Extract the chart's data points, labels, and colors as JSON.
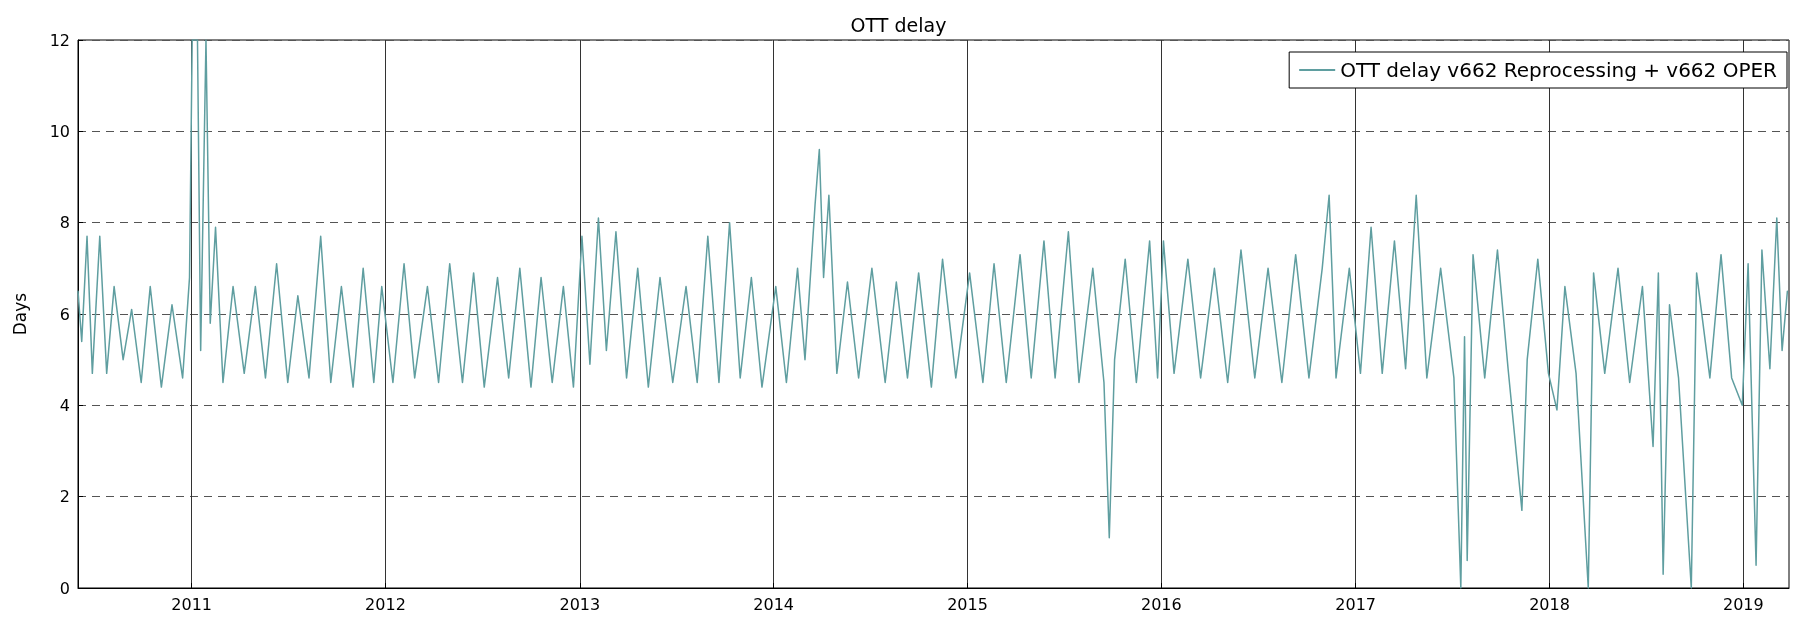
{
  "chart_data": {
    "type": "line",
    "title": "OTT delay",
    "ylabel": "Days",
    "xlim": [
      "2010-06-01",
      "2019-03-28"
    ],
    "xticks": [
      "2011",
      "2012",
      "2013",
      "2014",
      "2015",
      "2016",
      "2017",
      "2018",
      "2019"
    ],
    "ylim": [
      0,
      12
    ],
    "yticks": [
      0,
      2,
      4,
      6,
      8,
      10,
      12
    ],
    "grid": true,
    "legend": "top right",
    "marker": "none",
    "line_style": "solid",
    "series": [
      {
        "name": "OTT delay v662 Reprocessing + v662 OPER",
        "color": "#5f9ea0",
        "x": [
          "2010-06-01",
          "2010-06-08",
          "2010-06-18",
          "2010-06-28",
          "2010-07-12",
          "2010-07-25",
          "2010-08-08",
          "2010-08-25",
          "2010-09-10",
          "2010-09-28",
          "2010-10-15",
          "2010-11-05",
          "2010-11-25",
          "2010-12-15",
          "2010-12-28",
          "2011-01-02",
          "2011-01-12",
          "2011-01-18",
          "2011-01-28",
          "2011-02-05",
          "2011-02-15",
          "2011-03-01",
          "2011-03-20",
          "2011-04-10",
          "2011-05-01",
          "2011-05-20",
          "2011-06-10",
          "2011-07-01",
          "2011-07-20",
          "2011-08-10",
          "2011-09-01",
          "2011-09-20",
          "2011-10-10",
          "2011-11-01",
          "2011-11-20",
          "2011-12-10",
          "2011-12-25",
          "2012-01-15",
          "2012-02-05",
          "2012-02-25",
          "2012-03-20",
          "2012-04-10",
          "2012-05-01",
          "2012-05-25",
          "2012-06-15",
          "2012-07-05",
          "2012-07-30",
          "2012-08-20",
          "2012-09-10",
          "2012-10-01",
          "2012-10-20",
          "2012-11-10",
          "2012-12-01",
          "2012-12-20",
          "2013-01-05",
          "2013-01-20",
          "2013-02-05",
          "2013-02-20",
          "2013-03-10",
          "2013-03-30",
          "2013-04-20",
          "2013-05-10",
          "2013-06-01",
          "2013-06-25",
          "2013-07-20",
          "2013-08-10",
          "2013-08-30",
          "2013-09-20",
          "2013-10-10",
          "2013-10-30",
          "2013-11-20",
          "2013-12-10",
          "2014-01-05",
          "2014-01-25",
          "2014-02-15",
          "2014-03-01",
          "2014-03-20",
          "2014-03-28",
          "2014-04-05",
          "2014-04-15",
          "2014-04-30",
          "2014-05-20",
          "2014-06-10",
          "2014-07-05",
          "2014-07-30",
          "2014-08-20",
          "2014-09-10",
          "2014-10-01",
          "2014-10-25",
          "2014-11-15",
          "2014-12-10",
          "2015-01-05",
          "2015-01-30",
          "2015-02-20",
          "2015-03-15",
          "2015-04-10",
          "2015-05-01",
          "2015-05-25",
          "2015-06-15",
          "2015-07-10",
          "2015-07-30",
          "2015-08-25",
          "2015-09-15",
          "2015-09-25",
          "2015-10-05",
          "2015-10-25",
          "2015-11-15",
          "2015-12-10",
          "2015-12-25",
          "2016-01-05",
          "2016-01-25",
          "2016-02-20",
          "2016-03-15",
          "2016-04-10",
          "2016-05-05",
          "2016-05-30",
          "2016-06-25",
          "2016-07-20",
          "2016-08-15",
          "2016-09-10",
          "2016-10-05",
          "2016-10-30",
          "2016-11-12",
          "2016-11-25",
          "2016-12-20",
          "2017-01-10",
          "2017-01-30",
          "2017-02-20",
          "2017-03-15",
          "2017-04-05",
          "2017-04-25",
          "2017-05-15",
          "2017-06-10",
          "2017-07-05",
          "2017-07-18",
          "2017-07-25",
          "2017-07-30",
          "2017-08-10",
          "2017-09-01",
          "2017-09-25",
          "2017-10-15",
          "2017-11-10",
          "2017-11-20",
          "2017-12-10",
          "2017-12-30",
          "2018-01-15",
          "2018-01-30",
          "2018-02-20",
          "2018-03-15",
          "2018-03-25",
          "2018-04-15",
          "2018-05-10",
          "2018-06-01",
          "2018-06-25",
          "2018-07-15",
          "2018-07-25",
          "2018-08-03",
          "2018-08-15",
          "2018-09-01",
          "2018-09-25",
          "2018-10-05",
          "2018-10-30",
          "2018-11-20",
          "2018-12-10",
          "2018-12-30",
          "2019-01-10",
          "2019-01-25",
          "2019-02-05",
          "2019-02-20",
          "2019-03-05",
          "2019-03-15",
          "2019-03-25"
        ],
        "values": [
          6.5,
          5.4,
          7.7,
          4.7,
          7.7,
          4.7,
          6.6,
          5.0,
          6.1,
          4.5,
          6.6,
          4.4,
          6.2,
          4.6,
          6.8,
          12,
          12,
          5.2,
          12,
          5.8,
          7.9,
          4.5,
          6.6,
          4.7,
          6.6,
          4.6,
          7.1,
          4.5,
          6.4,
          4.6,
          7.7,
          4.5,
          6.6,
          4.4,
          7.0,
          4.5,
          6.6,
          4.5,
          7.1,
          4.6,
          6.6,
          4.5,
          7.1,
          4.5,
          6.9,
          4.4,
          6.8,
          4.6,
          7.0,
          4.4,
          6.8,
          4.5,
          6.6,
          4.4,
          7.7,
          4.9,
          8.1,
          5.2,
          7.8,
          4.6,
          7.0,
          4.4,
          6.8,
          4.5,
          6.6,
          4.5,
          7.7,
          4.5,
          8.0,
          4.6,
          6.8,
          4.4,
          6.6,
          4.5,
          7.0,
          5.0,
          8.4,
          9.6,
          6.8,
          8.6,
          4.7,
          6.7,
          4.6,
          7.0,
          4.5,
          6.7,
          4.6,
          6.9,
          4.4,
          7.2,
          4.6,
          6.9,
          4.5,
          7.1,
          4.5,
          7.3,
          4.6,
          7.6,
          4.6,
          7.8,
          4.5,
          7.0,
          4.5,
          1.1,
          5.0,
          7.2,
          4.5,
          7.6,
          4.6,
          7.6,
          4.7,
          7.2,
          4.6,
          7.0,
          4.5,
          7.4,
          4.6,
          7.0,
          4.5,
          7.3,
          4.6,
          7.0,
          8.6,
          4.6,
          7.0,
          4.7,
          7.9,
          4.7,
          7.6,
          4.8,
          8.6,
          4.6,
          7.0,
          4.6,
          0,
          5.5,
          0.6,
          7.3,
          4.6,
          7.4,
          4.8,
          1.7,
          5.0,
          7.2,
          4.7,
          3.9,
          6.6,
          4.7,
          0,
          6.9,
          4.7,
          7.0,
          4.5,
          6.6,
          3.1,
          6.9,
          0.3,
          6.2,
          4.6,
          0,
          6.9,
          4.6,
          7.3,
          4.6,
          4.0,
          7.1,
          0.5,
          7.4,
          4.8,
          8.1,
          5.2,
          6.5
        ]
      }
    ]
  }
}
